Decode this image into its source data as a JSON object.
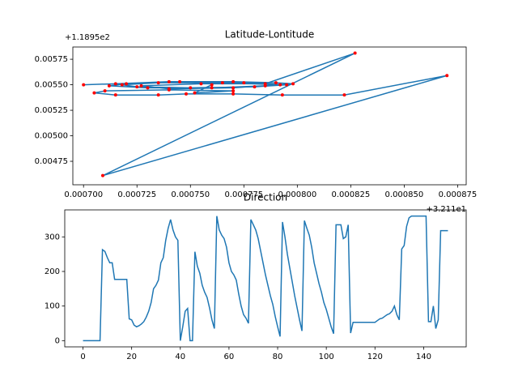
{
  "chart_data": [
    {
      "type": "line",
      "title": "Latitude-Lontitude",
      "color": "#1f77b4",
      "marker_color": "#ff0000",
      "x_offset_label": "+3.211e1",
      "y_offset_label": "+1.1895e2",
      "x": [
        0.0007,
        0.000715,
        0.00074,
        0.00077,
        0.00079,
        0.000798,
        0.000785,
        0.00076,
        0.00073,
        0.000712,
        0.00072,
        0.000745,
        0.000775,
        0.000795,
        0.00078,
        0.00075,
        0.000725,
        0.000718,
        0.000735,
        0.000765,
        0.000792,
        0.00077,
        0.00074,
        0.000727,
        0.000755,
        0.000785,
        0.000827,
        0.000709,
        0.00087,
        0.000822,
        0.000793,
        0.00077,
        0.000748,
        0.000735,
        0.000715,
        0.000705,
        0.00071,
        0.00074,
        0.00077,
        0.000752,
        0.00076
      ],
      "values": [
        0.0055,
        0.00551,
        0.00553,
        0.00553,
        0.00552,
        0.00551,
        0.00549,
        0.00547,
        0.00547,
        0.00549,
        0.00551,
        0.00553,
        0.00552,
        0.0055,
        0.00548,
        0.00547,
        0.00548,
        0.0055,
        0.00552,
        0.00552,
        0.0055,
        0.00547,
        0.00546,
        0.00549,
        0.00551,
        0.00551,
        0.00581,
        0.00461,
        0.00559,
        0.0054,
        0.0054,
        0.00541,
        0.00541,
        0.0054,
        0.0054,
        0.00542,
        0.00544,
        0.00545,
        0.00544,
        0.00542,
        0.0055
      ],
      "xlim": [
        0.000695,
        0.000879
      ],
      "ylim": [
        0.00452,
        0.00587
      ],
      "xticks": [
        {
          "value": 0.0007,
          "label": "0.000700"
        },
        {
          "value": 0.000725,
          "label": "0.000725"
        },
        {
          "value": 0.00075,
          "label": "0.000750"
        },
        {
          "value": 0.000775,
          "label": "0.000775"
        },
        {
          "value": 0.0008,
          "label": "0.000800"
        },
        {
          "value": 0.000825,
          "label": "0.000825"
        },
        {
          "value": 0.00085,
          "label": "0.000850"
        },
        {
          "value": 0.000875,
          "label": "0.000875"
        }
      ],
      "yticks": [
        {
          "value": 0.00475,
          "label": "0.00475"
        },
        {
          "value": 0.005,
          "label": "0.00500"
        },
        {
          "value": 0.00525,
          "label": "0.00525"
        },
        {
          "value": 0.0055,
          "label": "0.00550"
        },
        {
          "value": 0.00575,
          "label": "0.00575"
        }
      ]
    },
    {
      "type": "line",
      "title": "Direction",
      "color": "#1f77b4",
      "x": [
        0,
        1,
        2,
        3,
        4,
        5,
        6,
        7,
        8,
        9,
        10,
        11,
        12,
        13,
        14,
        15,
        16,
        17,
        18,
        19,
        20,
        21,
        22,
        23,
        24,
        25,
        26,
        27,
        28,
        29,
        30,
        31,
        32,
        33,
        34,
        35,
        36,
        37,
        38,
        39,
        40,
        41,
        42,
        43,
        44,
        45,
        46,
        47,
        48,
        49,
        50,
        51,
        52,
        53,
        54,
        55,
        56,
        57,
        58,
        59,
        60,
        61,
        62,
        63,
        64,
        65,
        66,
        67,
        68,
        69,
        70,
        71,
        72,
        73,
        74,
        75,
        76,
        77,
        78,
        79,
        80,
        81,
        82,
        83,
        84,
        85,
        86,
        87,
        88,
        89,
        90,
        91,
        92,
        93,
        94,
        95,
        96,
        97,
        98,
        99,
        100,
        101,
        102,
        103,
        104,
        105,
        106,
        107,
        108,
        109,
        110,
        111,
        112,
        113,
        114,
        115,
        116,
        117,
        118,
        119,
        120,
        121,
        122,
        123,
        124,
        125,
        126,
        127,
        128,
        129,
        130,
        131,
        132,
        133,
        134,
        135,
        136,
        137,
        138,
        139,
        140,
        141,
        142,
        143,
        144,
        145,
        146,
        147,
        148,
        149,
        150
      ],
      "values": [
        0,
        0,
        0,
        0,
        0,
        0,
        0,
        0,
        263,
        258,
        240,
        225,
        225,
        177,
        177,
        177,
        177,
        177,
        177,
        63,
        60,
        45,
        40,
        43,
        48,
        55,
        68,
        85,
        110,
        150,
        160,
        175,
        225,
        240,
        290,
        325,
        350,
        320,
        300,
        290,
        0,
        40,
        85,
        93,
        0,
        0,
        257,
        215,
        195,
        160,
        140,
        125,
        95,
        60,
        35,
        360,
        320,
        305,
        295,
        270,
        225,
        200,
        190,
        175,
        135,
        100,
        75,
        65,
        50,
        350,
        335,
        320,
        295,
        260,
        225,
        190,
        160,
        130,
        105,
        70,
        40,
        12,
        343,
        300,
        250,
        210,
        170,
        130,
        95,
        60,
        28,
        347,
        325,
        305,
        270,
        225,
        195,
        165,
        140,
        110,
        90,
        65,
        40,
        20,
        335,
        335,
        335,
        295,
        300,
        335,
        22,
        53,
        53,
        53,
        53,
        53,
        53,
        53,
        53,
        53,
        53,
        58,
        63,
        65,
        70,
        75,
        78,
        85,
        100,
        75,
        60,
        265,
        275,
        330,
        355,
        360,
        360,
        360,
        360,
        360,
        360,
        360,
        55,
        55,
        100,
        35,
        60,
        318,
        318,
        318,
        318
      ],
      "xlim": [
        -7.5,
        157.5
      ],
      "ylim": [
        -18,
        378
      ],
      "xticks": [
        0,
        20,
        40,
        60,
        80,
        100,
        120,
        140
      ],
      "yticks": [
        0,
        100,
        200,
        300
      ]
    }
  ]
}
